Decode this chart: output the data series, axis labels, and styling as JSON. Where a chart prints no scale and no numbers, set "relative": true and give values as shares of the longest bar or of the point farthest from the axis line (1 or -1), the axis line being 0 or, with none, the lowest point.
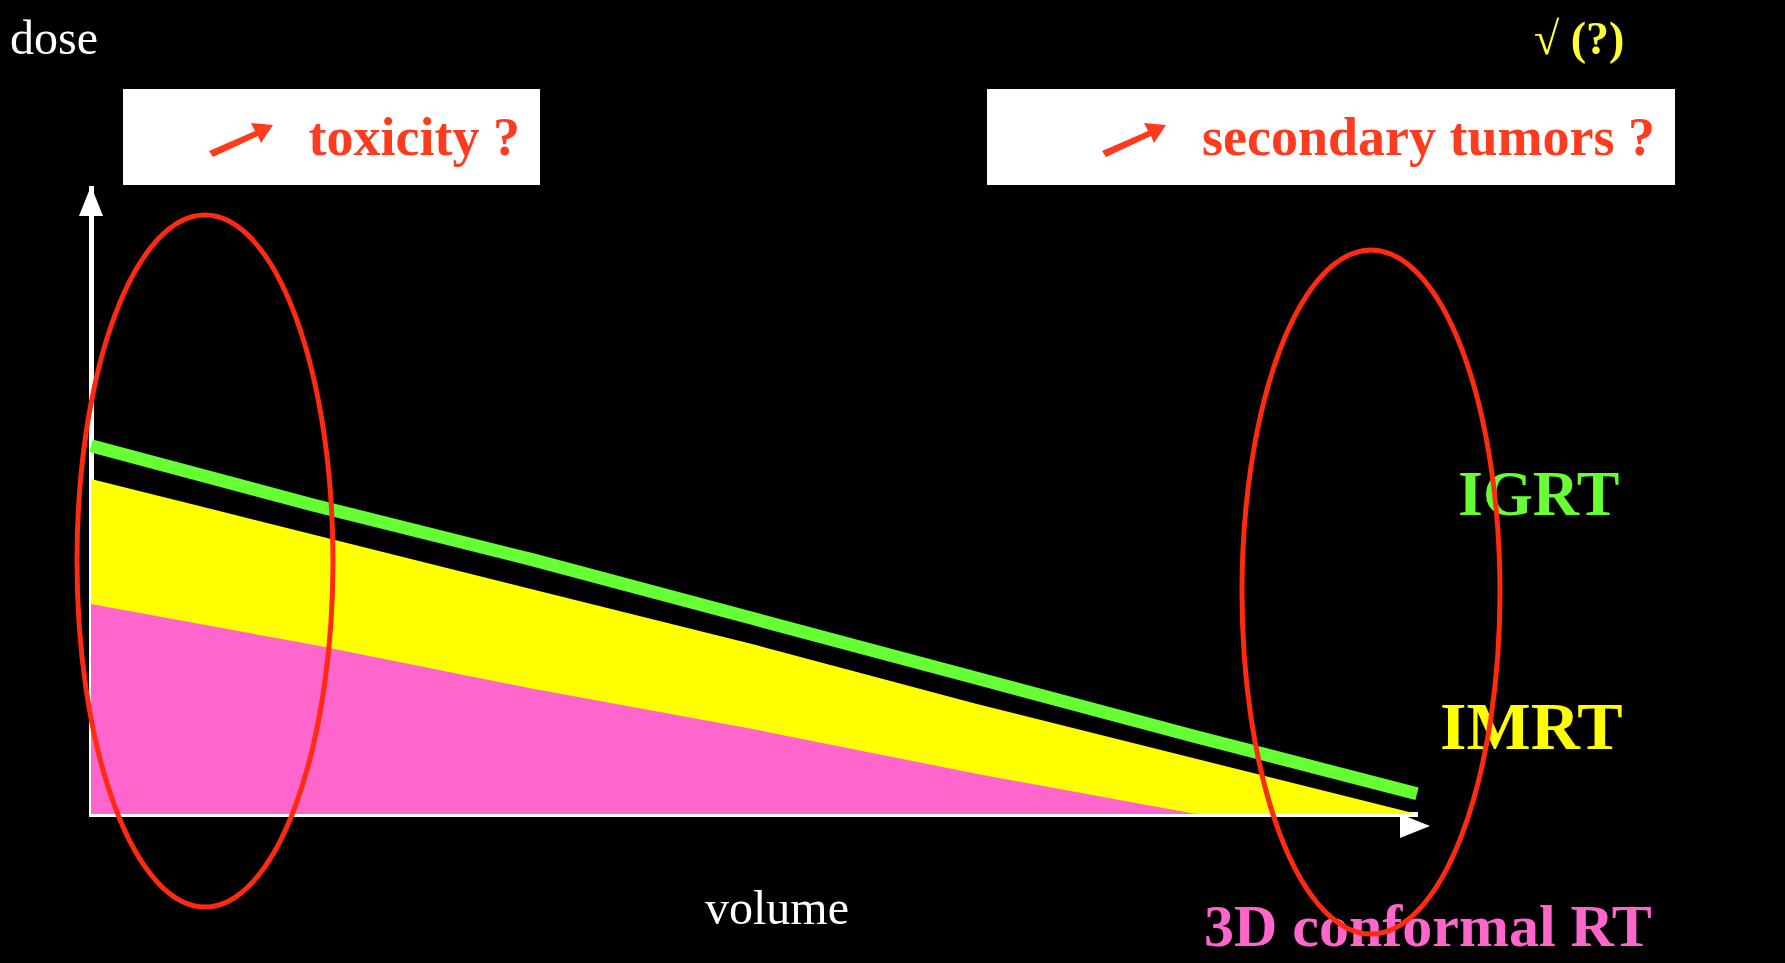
{
  "chart_data": {
    "type": "area",
    "relative": true,
    "xlabel": "volume",
    "legend": false,
    "categories": [
      null,
      null,
      null,
      null,
      null,
      null,
      null
    ],
    "series": [
      {
        "name": "IGRT",
        "type": "line",
        "color": "#66ff33",
        "values": [
          1,
          0.84,
          0.69,
          0.53,
          0.37,
          0.21,
          0.055
        ]
      },
      {
        "name": "IMRT",
        "color": "#ffff00",
        "values": [
          0.91,
          0.76,
          0.61,
          0.46,
          0.3,
          0.15,
          0
        ]
      },
      {
        "name": "3D conformal RT",
        "color": "#ff66cc",
        "values": [
          0.57,
          0.46,
          0.34,
          0.23,
          0.11,
          0,
          0
        ]
      }
    ],
    "annotations": [
      "toxicity ?",
      "secondary tumors ?",
      "√ (?)",
      "dose"
    ]
  }
}
